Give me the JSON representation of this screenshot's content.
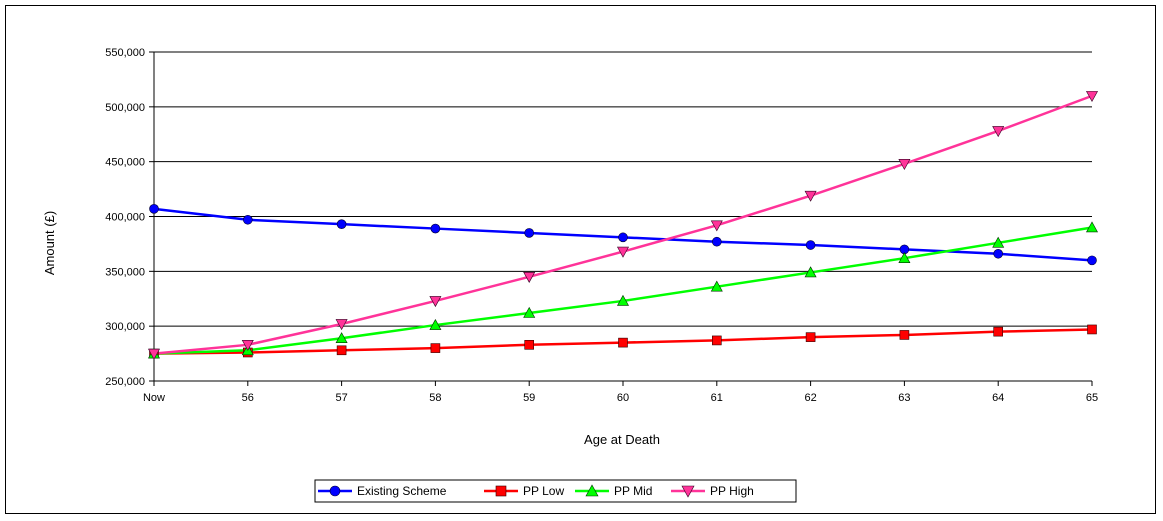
{
  "chart_data": {
    "type": "line",
    "title": "",
    "xlabel": "Age at Death",
    "ylabel": "Amount (£)",
    "categories": [
      "Now",
      "56",
      "57",
      "58",
      "59",
      "60",
      "61",
      "62",
      "63",
      "64",
      "65"
    ],
    "ylim": [
      250000,
      550000
    ],
    "yticks": [
      250000,
      300000,
      350000,
      400000,
      450000,
      500000,
      550000
    ],
    "ytick_labels": [
      "250,000",
      "300,000",
      "350,000",
      "400,000",
      "450,000",
      "500,000",
      "550,000"
    ],
    "grid": "horizontal",
    "legend_position": "bottom",
    "series": [
      {
        "name": "Existing Scheme",
        "color": "#0000ff",
        "marker": "circle",
        "values": [
          407000,
          397000,
          393000,
          389000,
          385000,
          381000,
          377000,
          374000,
          370000,
          366000,
          360000
        ]
      },
      {
        "name": "PP Low",
        "color": "#ff0000",
        "marker": "square",
        "values": [
          275000,
          276000,
          278000,
          280000,
          283000,
          285000,
          287000,
          290000,
          292000,
          295000,
          297000
        ]
      },
      {
        "name": "PP Mid",
        "color": "#00ff00",
        "marker": "triangle-up",
        "values": [
          275000,
          278000,
          289000,
          301000,
          312000,
          323000,
          336000,
          349000,
          362000,
          376000,
          390000
        ]
      },
      {
        "name": "PP High",
        "color": "#ff3399",
        "marker": "triangle-down",
        "values": [
          275000,
          283000,
          302000,
          323000,
          345000,
          368000,
          392000,
          419000,
          448000,
          478000,
          510000
        ]
      }
    ]
  }
}
